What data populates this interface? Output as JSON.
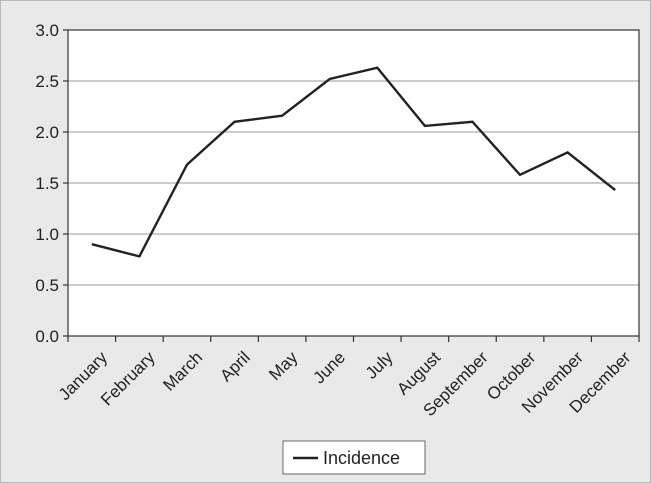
{
  "chart_data": {
    "type": "line",
    "title": "",
    "xlabel": "",
    "ylabel": "",
    "categories": [
      "January",
      "February",
      "March",
      "April",
      "May",
      "June",
      "July",
      "August",
      "September",
      "October",
      "November",
      "December"
    ],
    "series": [
      {
        "name": "Incidence",
        "values": [
          0.9,
          0.78,
          1.68,
          2.1,
          2.16,
          2.52,
          2.63,
          2.06,
          2.1,
          1.58,
          1.8,
          1.43
        ],
        "color": "#222222"
      }
    ],
    "ylim": [
      0,
      3.0
    ],
    "yticks": [
      "0.0",
      "0.5",
      "1.0",
      "1.5",
      "2.0",
      "2.5",
      "3.0"
    ],
    "grid": "horizontal",
    "legend_position": "bottom-center",
    "plot_background": "#ffffff",
    "frame_background": "#e9e9e9"
  }
}
